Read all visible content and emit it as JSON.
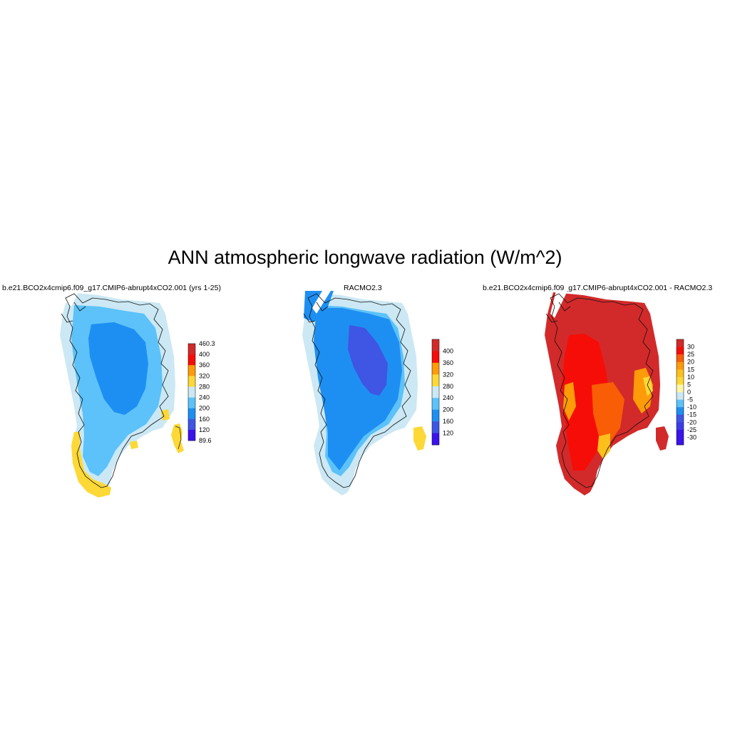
{
  "title": "ANN atmospheric longwave radiation (W/m^2)",
  "colors": {
    "c1": "#3b12ee",
    "c2": "#3f55e4",
    "c3": "#1e8ff2",
    "c4": "#5cc2f9",
    "c5": "#cbe8f4",
    "c6": "#fdd836",
    "c7": "#fd9b08",
    "c8": "#f60d08",
    "c9": "#d22a2a"
  },
  "panels": [
    {
      "title": "b.e21.BCO2x4cmip6.f09_g17.CMIP6-abrupt4xCO2.001 (yrs 1-25)",
      "colorbar": {
        "top_label": "460.3",
        "bottom_label": "89.6",
        "labels": [
          "400",
          "360",
          "320",
          "280",
          "240",
          "200",
          "160",
          "120"
        ],
        "colors": [
          "#d22a2a",
          "#f60d08",
          "#fd9b08",
          "#fdd836",
          "#cbe8f4",
          "#5cc2f9",
          "#1e8ff2",
          "#3f55e4",
          "#3b12ee"
        ]
      }
    },
    {
      "title": "RACMO2.3",
      "colorbar": {
        "labels": [
          "400",
          "360",
          "320",
          "280",
          "240",
          "200",
          "160",
          "120"
        ],
        "colors": [
          "#d22a2a",
          "#f60d08",
          "#fd9b08",
          "#fdd836",
          "#cbe8f4",
          "#5cc2f9",
          "#1e8ff2",
          "#3f55e4",
          "#3b12ee"
        ]
      }
    },
    {
      "title": "b.e21.BCO2x4cmip6.f09_g17.CMIP6-abrupt4xCO2.001 - RACMO2.3",
      "colorbar": {
        "labels": [
          "30",
          "25",
          "20",
          "15",
          "10",
          "5",
          "0",
          "-5",
          "-10",
          "-15",
          "-20",
          "-25",
          "-30"
        ],
        "colors": [
          "#d22a2a",
          "#f60d08",
          "#f95d05",
          "#fd9b08",
          "#fdbf1c",
          "#fdd836",
          "#fff7a8",
          "#cbe8f4",
          "#5cc2f9",
          "#1e8ff2",
          "#3f55e4",
          "#3b3ce8",
          "#3b12ee",
          "#3b12ee"
        ]
      }
    }
  ]
}
